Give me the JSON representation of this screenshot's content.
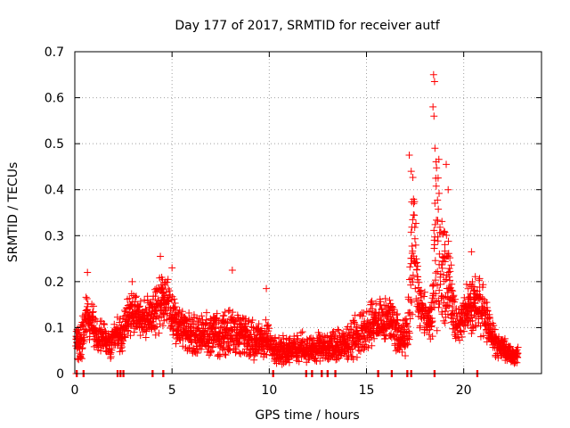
{
  "chart_data": {
    "type": "scatter",
    "title": "Day 177 of 2017, SRMTID for receiver autf",
    "xlabel": "GPS time / hours",
    "ylabel": "SRMTID / TECUs",
    "xlim": [
      0,
      24
    ],
    "ylim": [
      0,
      0.7
    ],
    "xticks": [
      "0",
      "5",
      "10",
      "15",
      "20"
    ],
    "xtick_values": [
      0,
      5,
      10,
      15,
      20
    ],
    "yticks": [
      "0",
      "0.1",
      "0.2",
      "0.3",
      "0.4",
      "0.5",
      "0.6",
      "0.7"
    ],
    "ytick_values": [
      0,
      0.1,
      0.2,
      0.3,
      0.4,
      0.5,
      0.6,
      0.7
    ],
    "grid": true,
    "marker": "plus",
    "color": "#ff0000",
    "series": [
      {
        "name": "SRMTID",
        "trend": {
          "x": [
            0.05,
            0.3,
            0.6,
            0.9,
            1.2,
            1.5,
            1.8,
            2.1,
            2.4,
            2.7,
            3.0,
            3.3,
            3.6,
            3.9,
            4.2,
            4.5,
            4.8,
            5.1,
            5.4,
            5.7,
            6.0,
            6.3,
            6.6,
            6.9,
            7.2,
            7.5,
            7.8,
            8.1,
            8.4,
            8.7,
            9.0,
            9.3,
            9.6,
            9.9,
            10.2,
            10.5,
            10.8,
            11.1,
            11.4,
            11.7,
            12.0,
            12.3,
            12.6,
            12.9,
            13.2,
            13.5,
            13.8,
            14.1,
            14.4,
            14.7,
            15.0,
            15.3,
            15.6,
            15.9,
            16.2,
            16.5,
            16.8,
            17.1,
            17.4,
            17.7,
            18.0,
            18.3,
            18.6,
            18.9,
            19.2,
            19.5,
            19.8,
            20.1,
            20.4,
            20.7,
            21.0,
            21.3,
            21.6,
            21.9,
            22.2,
            22.5,
            22.8
          ],
          "y": [
            0.07,
            0.06,
            0.12,
            0.11,
            0.07,
            0.08,
            0.06,
            0.09,
            0.08,
            0.12,
            0.13,
            0.12,
            0.12,
            0.13,
            0.14,
            0.16,
            0.16,
            0.12,
            0.1,
            0.09,
            0.08,
            0.08,
            0.09,
            0.08,
            0.09,
            0.08,
            0.09,
            0.1,
            0.08,
            0.08,
            0.08,
            0.07,
            0.07,
            0.08,
            0.06,
            0.05,
            0.05,
            0.06,
            0.05,
            0.06,
            0.05,
            0.05,
            0.06,
            0.05,
            0.06,
            0.06,
            0.06,
            0.07,
            0.08,
            0.09,
            0.1,
            0.11,
            0.11,
            0.11,
            0.12,
            0.1,
            0.07,
            0.09,
            0.3,
            0.15,
            0.13,
            0.11,
            0.35,
            0.22,
            0.2,
            0.12,
            0.1,
            0.15,
            0.14,
            0.15,
            0.14,
            0.1,
            0.07,
            0.06,
            0.05,
            0.04,
            0.04
          ]
        },
        "spread": [
          0.035,
          0.05,
          0.055,
          0.05,
          0.045,
          0.045,
          0.04,
          0.04,
          0.045,
          0.05,
          0.05,
          0.05,
          0.05,
          0.05,
          0.06,
          0.07,
          0.065,
          0.06,
          0.055,
          0.055,
          0.055,
          0.055,
          0.055,
          0.055,
          0.055,
          0.055,
          0.06,
          0.06,
          0.05,
          0.05,
          0.05,
          0.05,
          0.045,
          0.05,
          0.04,
          0.035,
          0.035,
          0.035,
          0.035,
          0.035,
          0.035,
          0.035,
          0.035,
          0.035,
          0.035,
          0.04,
          0.04,
          0.045,
          0.05,
          0.05,
          0.05,
          0.055,
          0.055,
          0.055,
          0.055,
          0.05,
          0.04,
          0.06,
          0.17,
          0.06,
          0.06,
          0.06,
          0.3,
          0.15,
          0.12,
          0.06,
          0.05,
          0.07,
          0.07,
          0.07,
          0.07,
          0.05,
          0.035,
          0.03,
          0.025,
          0.02,
          0.02
        ],
        "peaks": [
          {
            "x": 0.65,
            "y": 0.22
          },
          {
            "x": 2.95,
            "y": 0.2
          },
          {
            "x": 4.4,
            "y": 0.255
          },
          {
            "x": 5.0,
            "y": 0.23
          },
          {
            "x": 8.1,
            "y": 0.225
          },
          {
            "x": 9.85,
            "y": 0.185
          },
          {
            "x": 17.2,
            "y": 0.475
          },
          {
            "x": 17.3,
            "y": 0.44
          },
          {
            "x": 18.45,
            "y": 0.65
          },
          {
            "x": 18.5,
            "y": 0.635
          },
          {
            "x": 18.42,
            "y": 0.58
          },
          {
            "x": 18.47,
            "y": 0.56
          },
          {
            "x": 18.52,
            "y": 0.49
          },
          {
            "x": 19.1,
            "y": 0.455
          },
          {
            "x": 19.2,
            "y": 0.4
          },
          {
            "x": 20.4,
            "y": 0.265
          }
        ],
        "zero_gaps_x": [
          0.1,
          0.45,
          2.2,
          2.35,
          2.5,
          4.0,
          4.55,
          10.2,
          11.9,
          12.2,
          12.7,
          13.0,
          13.4,
          15.6,
          16.3,
          17.1,
          17.3,
          18.5,
          20.7
        ]
      }
    ]
  }
}
